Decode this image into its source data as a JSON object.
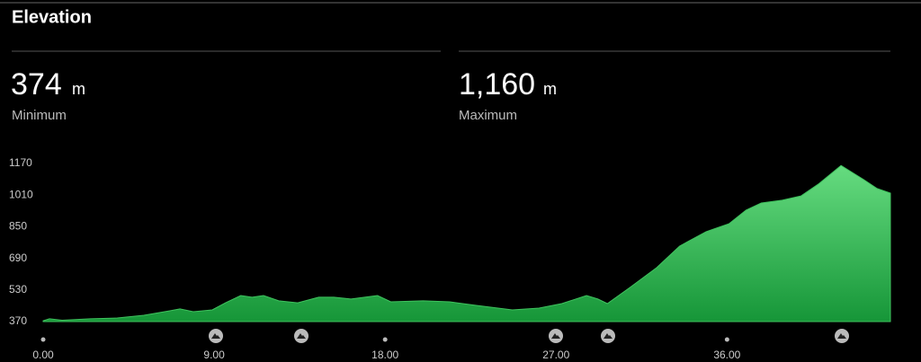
{
  "header": {
    "title": "Elevation"
  },
  "stats": [
    {
      "value": "374",
      "unit": "m",
      "label": "Minimum"
    },
    {
      "value": "1,160",
      "unit": "m",
      "label": "Maximum"
    }
  ],
  "chart_data": {
    "type": "area",
    "x": [
      0,
      0.33,
      1.0,
      2.5,
      3.9,
      5.3,
      6.7,
      7.2,
      7.9,
      8.9,
      9.6,
      10.4,
      11.0,
      11.6,
      12.4,
      13.4,
      14.5,
      15.3,
      16.2,
      17.6,
      18.3,
      20.0,
      21.4,
      22.8,
      24.7,
      26.1,
      27.3,
      28.6,
      29.2,
      29.7,
      30.9,
      32.3,
      33.5,
      34.9,
      36.1,
      37.0,
      37.8,
      38.9,
      39.9,
      40.8,
      42.0,
      43.2,
      43.9,
      44.6
    ],
    "values": [
      374,
      384,
      377,
      384,
      388,
      402,
      425,
      434,
      420,
      429,
      465,
      502,
      493,
      502,
      475,
      465,
      493,
      493,
      484,
      502,
      470,
      475,
      470,
      452,
      429,
      438,
      461,
      502,
      484,
      461,
      543,
      643,
      752,
      825,
      865,
      934,
      970,
      984,
      1006,
      1065,
      1160,
      1088,
      1043,
      1020
    ],
    "color": "#3fc25e",
    "xlim": [
      0,
      44.6
    ],
    "xticks": [
      {
        "value": 0,
        "label": "0.00"
      },
      {
        "value": 9,
        "label": "9.00"
      },
      {
        "value": 18,
        "label": "18.00"
      },
      {
        "value": 27,
        "label": "27.00"
      },
      {
        "value": 36,
        "label": "36.00"
      }
    ],
    "ylim": [
      370,
      1170
    ],
    "yticks": [
      370,
      530,
      690,
      850,
      1010,
      1170
    ]
  }
}
